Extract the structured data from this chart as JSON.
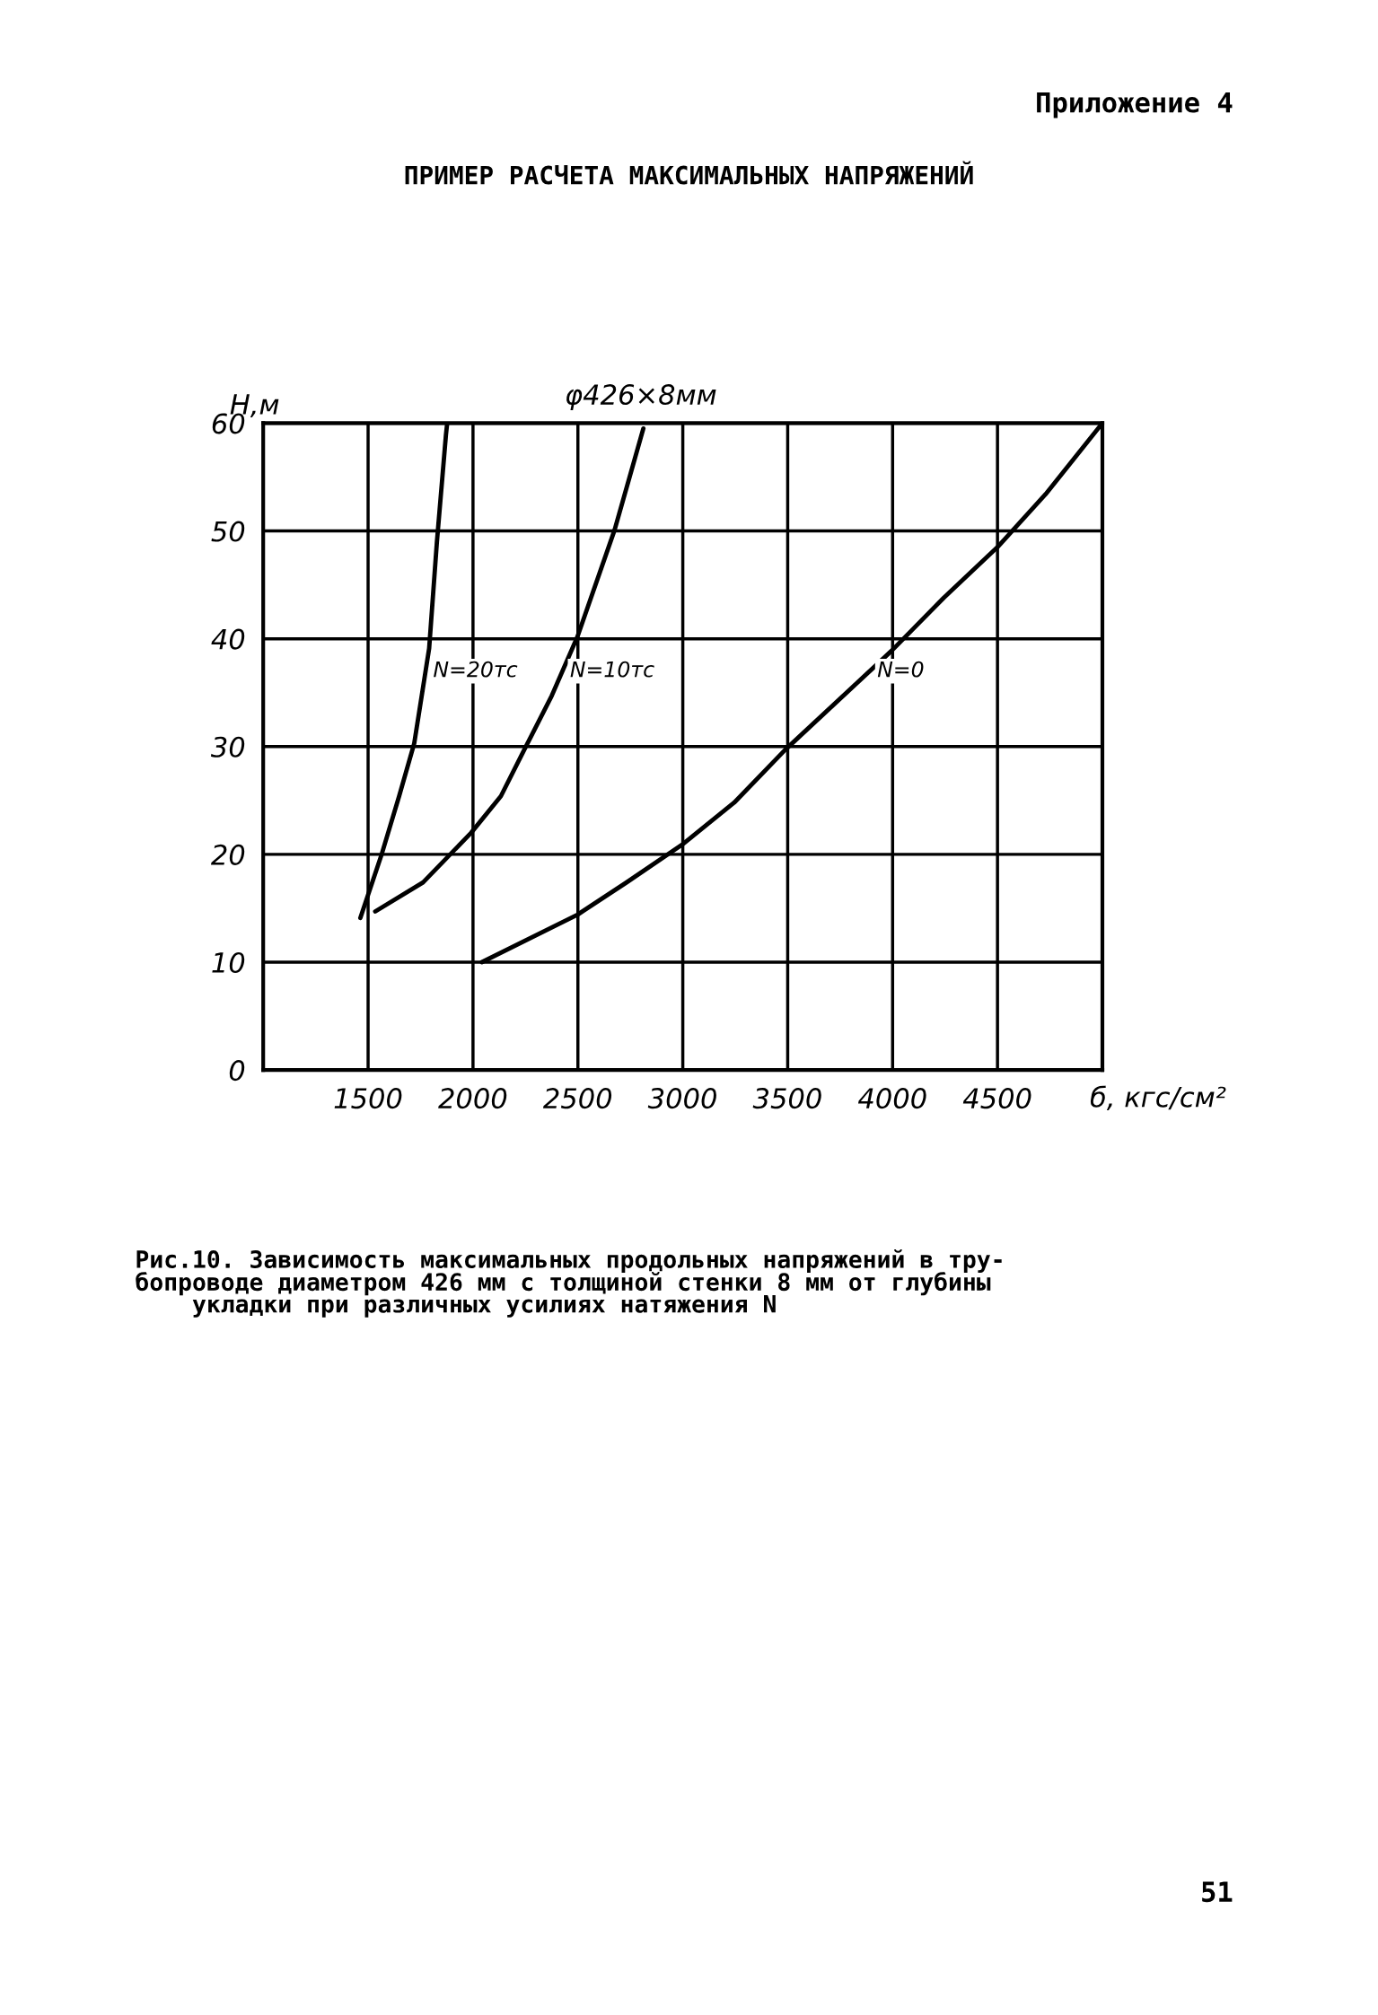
{
  "chart_data": {
    "type": "line",
    "title": "ПРИМЕР РАСЧЕТА МАКСИМАЛЬНЫХ НАПРЯЖЕНИЙ",
    "subtitle": "φ426×8мм",
    "xlabel": "б, кгс/см²",
    "ylabel": "H,м",
    "annotations": [
      "Приложение 4",
      "Рис.10. Зависимость максимальных продольных напряжений в тру-\nбопроводе диаметром 426 мм с толщиной стенки 8 мм от глубины\n    укладки при различных усилиях натяжения N",
      "51"
    ],
    "series": [
      {
        "name": "N=20тс",
        "color": "#000000",
        "x": [
          1463,
          1563,
          1648,
          1720,
          1791,
          1828,
          1871,
          1877
        ],
        "values": [
          14.1,
          19.9,
          25.4,
          30.3,
          39.1,
          49.0,
          58.9,
          60
        ]
      },
      {
        "name": "N=10тс",
        "color": "#000000",
        "x": [
          1534,
          1762,
          1991,
          2133,
          2247,
          2375,
          2498,
          2675,
          2812
        ],
        "values": [
          14.7,
          17.4,
          22.0,
          25.4,
          29.8,
          34.7,
          40.2,
          50.1,
          59.5
        ]
      },
      {
        "name": "N=0",
        "color": "#000000",
        "x": [
          2042,
          2498,
          2732,
          2997,
          3245,
          3488,
          3996,
          4244,
          4500,
          4729,
          5000
        ],
        "values": [
          10,
          14.4,
          17.4,
          20.9,
          24.8,
          29.7,
          38.9,
          43.8,
          48.5,
          53.4,
          60
        ]
      }
    ],
    "xlim": [
      1000,
      5000
    ],
    "xticks": [
      1500,
      2000,
      2500,
      3000,
      3500,
      4000,
      4500
    ],
    "ylim": [
      0,
      60
    ],
    "yticks": [
      0,
      10,
      20,
      30,
      40,
      50,
      60
    ],
    "grid": true,
    "legend": false,
    "marker": "none",
    "line_style": "solid"
  }
}
